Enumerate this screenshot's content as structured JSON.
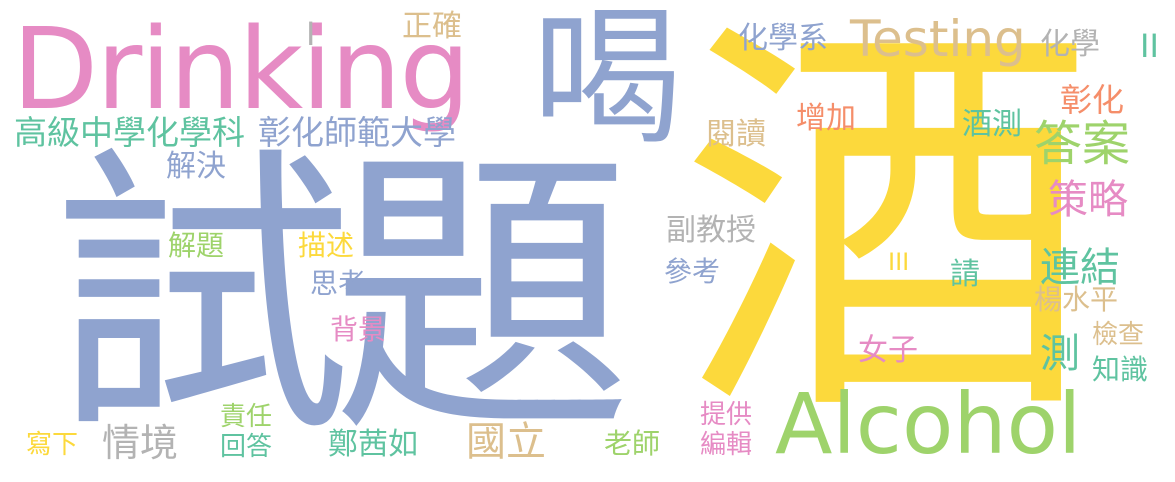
{
  "colors": {
    "blue": "#8fa3cf",
    "yellow": "#fcd93c",
    "pink": "#e68bc4",
    "green": "#9ed36b",
    "teal": "#5fc3a0",
    "tan": "#dcbf8d",
    "orange": "#f58e6a",
    "gray": "#b3b3b3"
  },
  "words": [
    {
      "text": "試題",
      "color": "#8fa3cf"
    },
    {
      "text": "酒",
      "color": "#fcd93c"
    },
    {
      "text": "Drinking",
      "color": "#e68bc4"
    },
    {
      "text": "喝",
      "color": "#8fa3cf"
    },
    {
      "text": "Alcohol",
      "color": "#9ed36b"
    },
    {
      "text": "Testing",
      "color": "#dcbf8d"
    },
    {
      "text": "答案",
      "color": "#9ed36b"
    },
    {
      "text": "策略",
      "color": "#e68bc4"
    },
    {
      "text": "連結",
      "color": "#5fc3a0"
    },
    {
      "text": "高級中學化學科",
      "color": "#5fc3a0"
    },
    {
      "text": "彰化師範大學",
      "color": "#8fa3cf"
    },
    {
      "text": "化學系",
      "color": "#8fa3cf"
    },
    {
      "text": "化學",
      "color": "#b3b3b3"
    },
    {
      "text": "正確",
      "color": "#dcbf8d"
    },
    {
      "text": "I",
      "color": "#b3b3b3"
    },
    {
      "text": "II",
      "color": "#5fc3a0"
    },
    {
      "text": "III",
      "color": "#fcd93c"
    },
    {
      "text": "彰化",
      "color": "#f58e6a"
    },
    {
      "text": "增加",
      "color": "#f58e6a"
    },
    {
      "text": "酒測",
      "color": "#5fc3a0"
    },
    {
      "text": "閱讀",
      "color": "#dcbf8d"
    },
    {
      "text": "解決",
      "color": "#8fa3cf"
    },
    {
      "text": "副教授",
      "color": "#b3b3b3"
    },
    {
      "text": "解題",
      "color": "#9ed36b"
    },
    {
      "text": "描述",
      "color": "#fcd93c"
    },
    {
      "text": "參考",
      "color": "#8fa3cf"
    },
    {
      "text": "思考",
      "color": "#8fa3cf"
    },
    {
      "text": "請",
      "color": "#5fc3a0"
    },
    {
      "text": "楊水平",
      "color": "#dcbf8d"
    },
    {
      "text": "背景",
      "color": "#e68bc4"
    },
    {
      "text": "女子",
      "color": "#e68bc4"
    },
    {
      "text": "測",
      "color": "#5fc3a0"
    },
    {
      "text": "檢查",
      "color": "#dcbf8d"
    },
    {
      "text": "知識",
      "color": "#5fc3a0"
    },
    {
      "text": "責任",
      "color": "#9ed36b"
    },
    {
      "text": "回答",
      "color": "#5fc3a0"
    },
    {
      "text": "提供",
      "color": "#e68bc4"
    },
    {
      "text": "編輯",
      "color": "#e68bc4"
    },
    {
      "text": "寫下",
      "color": "#fcd93c"
    },
    {
      "text": "情境",
      "color": "#b3b3b3"
    },
    {
      "text": "鄭茜如",
      "color": "#5fc3a0"
    },
    {
      "text": "國立",
      "color": "#dcbf8d"
    },
    {
      "text": "老師",
      "color": "#9ed36b"
    }
  ]
}
